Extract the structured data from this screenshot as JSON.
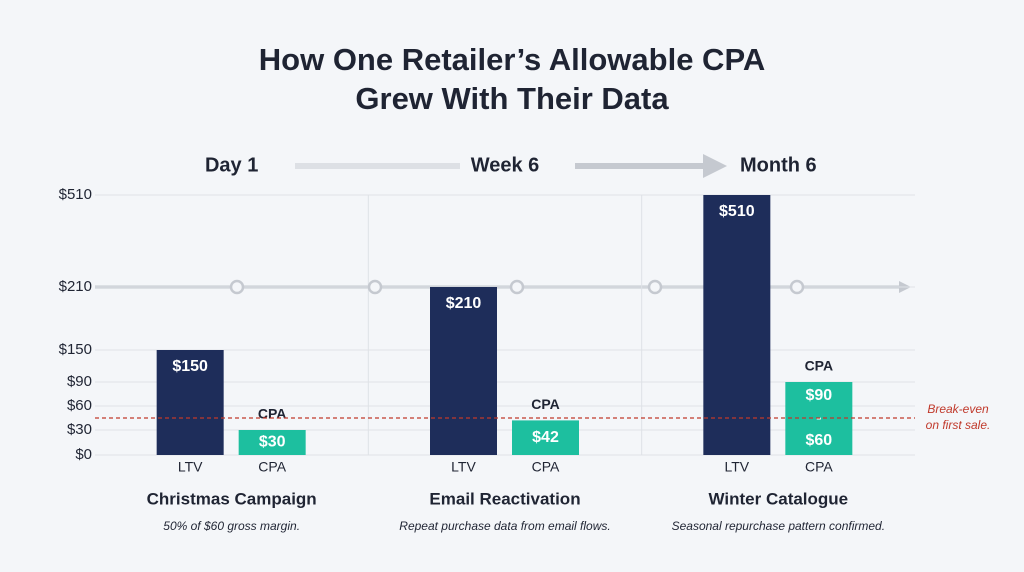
{
  "chart_data": {
    "type": "bar",
    "title": [
      "How One Retailer’s Allowable CPA",
      "Grew With Their Data"
    ],
    "phases": [
      "Day 1",
      "Week 6",
      "Month 6"
    ],
    "categories": [
      "Christmas Campaign",
      "Email Reactivation",
      "Winter Catalogue"
    ],
    "subtitles": [
      "50% of $60 gross margin.",
      "Repeat purchase data from email flows.",
      "Seasonal repurchase pattern confirmed."
    ],
    "series": [
      {
        "name": "LTV",
        "color": "#1e2d5a",
        "values": [
          150,
          210,
          510
        ],
        "value_labels": [
          "$150",
          "$210",
          "$510"
        ]
      },
      {
        "name": "CPA",
        "color": "#1dbf9f",
        "values": [
          30,
          42,
          90
        ],
        "value_labels": [
          "$30",
          "$42",
          "$90"
        ],
        "range_low": [
          null,
          null,
          60
        ],
        "range_low_labels": [
          null,
          null,
          "$60"
        ],
        "range_separator": "-"
      }
    ],
    "ylim": [
      0,
      510
    ],
    "yticks": [
      {
        "value": 0,
        "label": "$0"
      },
      {
        "value": 30,
        "label": "$30"
      },
      {
        "value": 60,
        "label": "$60"
      },
      {
        "value": 90,
        "label": "$90"
      },
      {
        "value": 150,
        "label": "$150"
      },
      {
        "value": 210,
        "label": "$210"
      },
      {
        "value": 510,
        "label": "$510"
      }
    ],
    "break_even": {
      "value": 45,
      "label": [
        "Break-even",
        "on first sale."
      ],
      "color": "#c0392b"
    },
    "grid": true
  }
}
